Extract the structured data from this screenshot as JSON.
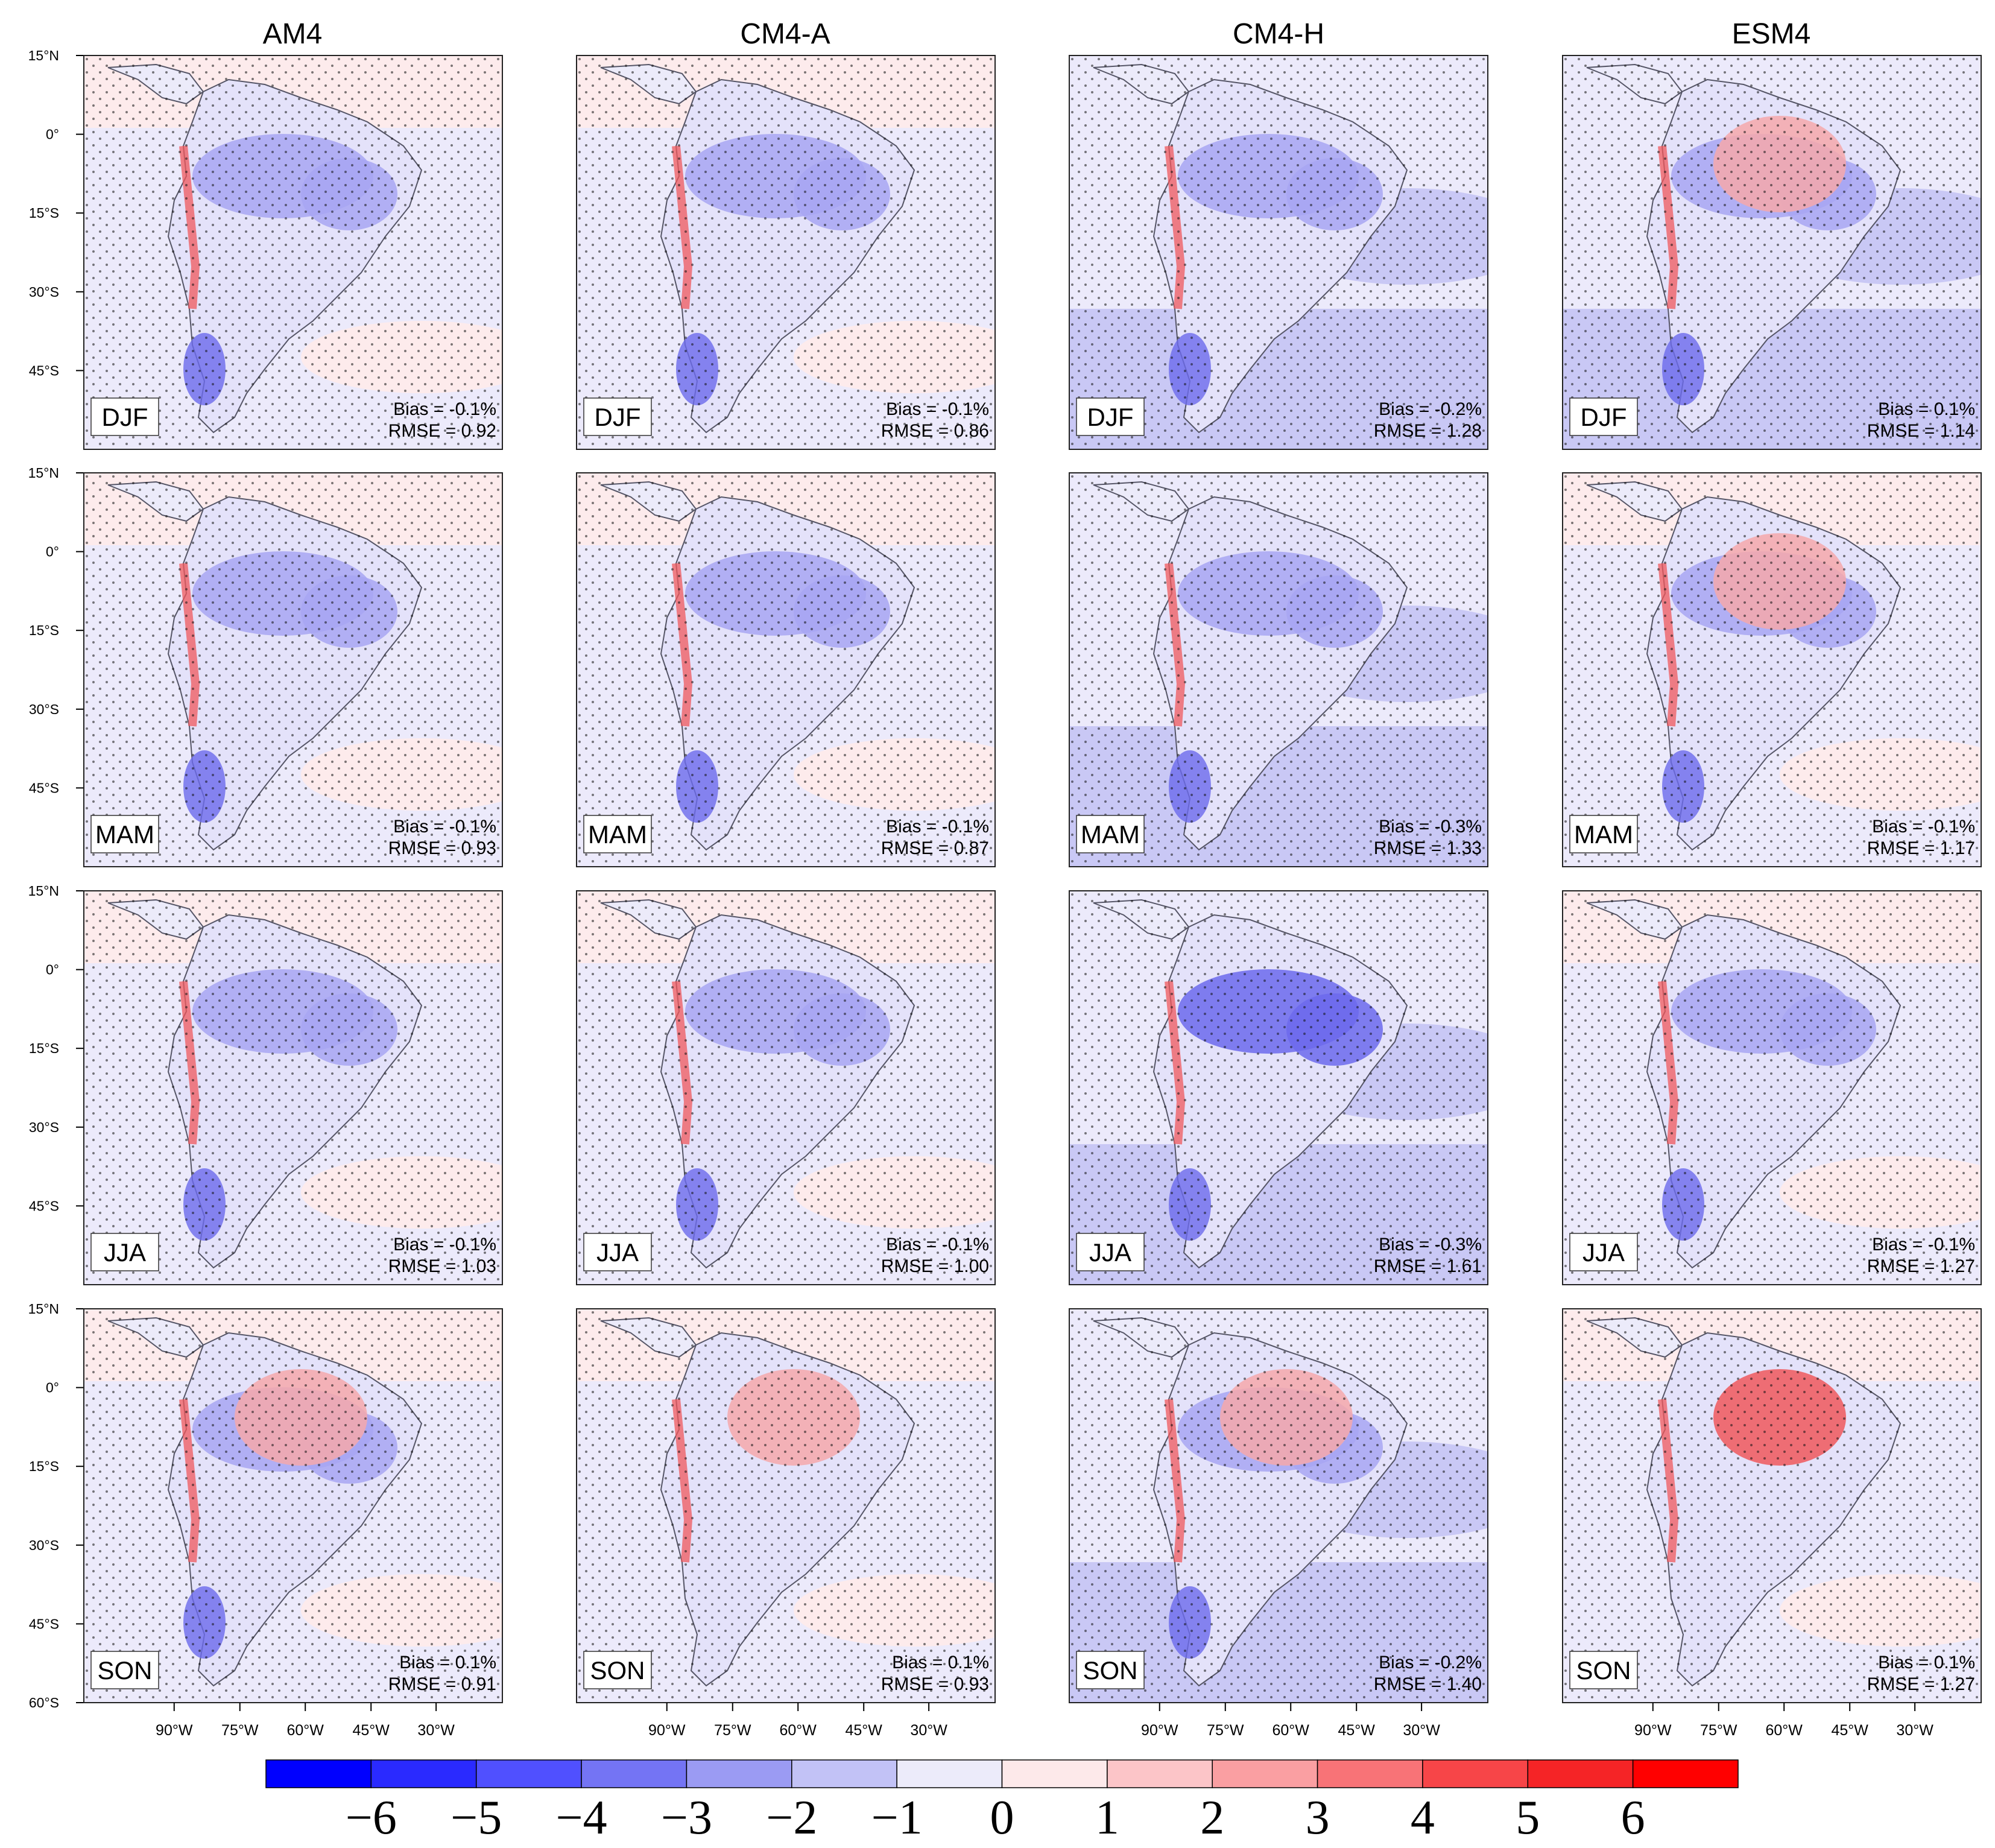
{
  "figure": {
    "columns": [
      "AM4",
      "CM4-A",
      "CM4-H",
      "ESM4"
    ],
    "seasons": [
      "DJF",
      "MAM",
      "JJA",
      "SON"
    ],
    "lat_labels": [
      "15°N",
      "0°",
      "15°S",
      "30°S",
      "45°S",
      "60°S"
    ],
    "lon_labels": [
      "90°W",
      "75°W",
      "60°W",
      "45°W",
      "30°W"
    ],
    "panels": [
      [
        {
          "season": "DJF",
          "bias": "Bias = -0.1%",
          "rmse": "RMSE = 0.92"
        },
        {
          "season": "DJF",
          "bias": "Bias = -0.1%",
          "rmse": "RMSE = 0.86"
        },
        {
          "season": "DJF",
          "bias": "Bias = -0.2%",
          "rmse": "RMSE = 1.28"
        },
        {
          "season": "DJF",
          "bias": "Bias = 0.1%",
          "rmse": "RMSE = 1.14"
        }
      ],
      [
        {
          "season": "MAM",
          "bias": "Bias = -0.1%",
          "rmse": "RMSE = 0.93"
        },
        {
          "season": "MAM",
          "bias": "Bias = -0.1%",
          "rmse": "RMSE = 0.87"
        },
        {
          "season": "MAM",
          "bias": "Bias = -0.3%",
          "rmse": "RMSE = 1.33"
        },
        {
          "season": "MAM",
          "bias": "Bias = -0.1%",
          "rmse": "RMSE = 1.17"
        }
      ],
      [
        {
          "season": "JJA",
          "bias": "Bias = -0.1%",
          "rmse": "RMSE = 1.03"
        },
        {
          "season": "JJA",
          "bias": "Bias = -0.1%",
          "rmse": "RMSE = 1.00"
        },
        {
          "season": "JJA",
          "bias": "Bias = -0.3%",
          "rmse": "RMSE = 1.61"
        },
        {
          "season": "JJA",
          "bias": "Bias = -0.1%",
          "rmse": "RMSE = 1.27"
        }
      ],
      [
        {
          "season": "SON",
          "bias": "Bias = 0.1%",
          "rmse": "RMSE = 0.91"
        },
        {
          "season": "SON",
          "bias": "Bias = 0.1%",
          "rmse": "RMSE = 0.93"
        },
        {
          "season": "SON",
          "bias": "Bias = -0.2%",
          "rmse": "RMSE = 1.40"
        },
        {
          "season": "SON",
          "bias": "Bias = 0.1%",
          "rmse": "RMSE = 1.27"
        }
      ]
    ],
    "colorbar": {
      "labels": [
        "−6",
        "−5",
        "−4",
        "−3",
        "−2",
        "−1",
        "0",
        "1",
        "2",
        "3",
        "4",
        "5",
        "6"
      ],
      "colors": [
        "#0000ff",
        "#2a2aff",
        "#5050ff",
        "#7474f4",
        "#9b9bf3",
        "#c2c2f6",
        "#ecebfa",
        "#fde9ea",
        "#fcc5c8",
        "#fa9fa2",
        "#f87377",
        "#f74548",
        "#f52426",
        "#ff0000"
      ]
    }
  },
  "palette": {
    "ocean_light_blue": "#eceafb",
    "ocean_light_red": "#fdebec",
    "land_blue": "#a8a6f2",
    "land_blue_dark": "#6c6aec",
    "land_red": "#f6a8aa",
    "land_red_dark": "#f0585c",
    "coast": "#555566"
  }
}
